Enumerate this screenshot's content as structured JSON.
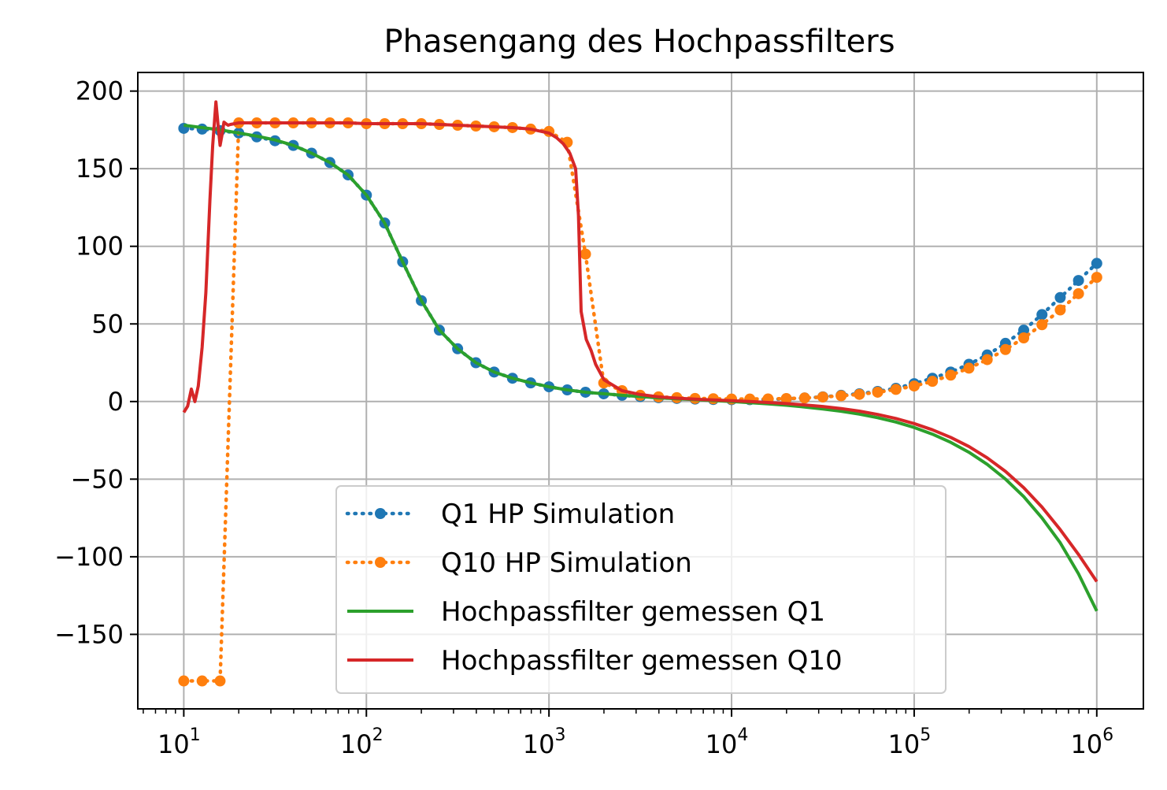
{
  "chart_data": {
    "type": "line",
    "title": "Phasengang des Hochpassfilters",
    "xlabel": "",
    "ylabel": "",
    "xscale": "log",
    "xlim": [
      5.6,
      1800000
    ],
    "ylim": [
      -198,
      212
    ],
    "x_ticks": [
      {
        "value": 10,
        "mantissa": "10",
        "exp": "1"
      },
      {
        "value": 100,
        "mantissa": "10",
        "exp": "2"
      },
      {
        "value": 1000,
        "mantissa": "10",
        "exp": "3"
      },
      {
        "value": 10000,
        "mantissa": "10",
        "exp": "4"
      },
      {
        "value": 100000,
        "mantissa": "10",
        "exp": "5"
      },
      {
        "value": 1000000,
        "mantissa": "10",
        "exp": "6"
      }
    ],
    "y_ticks": [
      {
        "value": 200,
        "label": "200"
      },
      {
        "value": 150,
        "label": "150"
      },
      {
        "value": 100,
        "label": "100"
      },
      {
        "value": 50,
        "label": "50"
      },
      {
        "value": 0,
        "label": "0"
      },
      {
        "value": -50,
        "label": "−50"
      },
      {
        "value": -100,
        "label": "−100"
      },
      {
        "value": -150,
        "label": "−150"
      }
    ],
    "grid": true,
    "legend_position": "lower-center",
    "series": [
      {
        "name": "Q1 HP Simulation",
        "color": "#1f77b4",
        "style": "dotted-markers",
        "x": [
          10,
          12.6,
          15.8,
          20,
          25.1,
          31.6,
          39.8,
          50.1,
          63.1,
          79.4,
          100,
          126,
          158,
          200,
          251,
          316,
          398,
          501,
          631,
          794,
          1000,
          1259,
          1585,
          1995,
          2512,
          3162,
          3981,
          5012,
          6310,
          7943,
          10000,
          12589,
          15849,
          19953,
          25119,
          31623,
          39811,
          50119,
          63096,
          79433,
          100000,
          125893,
          158489,
          199526,
          251189,
          316228,
          398107,
          501187,
          630957,
          794328,
          1000000
        ],
        "y": [
          176,
          175.5,
          174.5,
          173,
          170.5,
          168,
          165,
          160,
          154,
          146,
          133,
          115,
          90,
          65,
          46,
          34,
          25,
          19,
          15,
          12,
          9.5,
          7.5,
          6,
          5,
          4,
          3.2,
          2.5,
          2,
          1.6,
          1.3,
          1.2,
          1.2,
          1.4,
          1.8,
          2.3,
          3,
          4,
          5,
          6.5,
          8.5,
          11.5,
          15,
          19,
          24,
          30,
          37.5,
          46,
          56,
          67,
          78,
          89
        ]
      },
      {
        "name": "Q10 HP Simulation",
        "color": "#ff7f0e",
        "style": "dotted-markers",
        "x": [
          10,
          12.6,
          15.8,
          20,
          25.1,
          31.6,
          39.8,
          50.1,
          63.1,
          79.4,
          100,
          126,
          158,
          200,
          251,
          316,
          398,
          501,
          631,
          794,
          1000,
          1259,
          1585,
          1995,
          2512,
          3162,
          3981,
          5012,
          6310,
          7943,
          10000,
          12589,
          15849,
          19953,
          25119,
          31623,
          39811,
          50119,
          63096,
          79433,
          100000,
          125893,
          158489,
          199526,
          251189,
          316228,
          398107,
          501187,
          630957,
          794328,
          1000000
        ],
        "y": [
          -180,
          -180,
          -180,
          179.5,
          179.5,
          179.5,
          179.5,
          179.5,
          179.5,
          179.5,
          179,
          179,
          179,
          179,
          178.5,
          178,
          177.5,
          177,
          176.5,
          175.5,
          174,
          167,
          95,
          12,
          7,
          4,
          3,
          2.5,
          2,
          1.8,
          1.6,
          1.6,
          1.7,
          1.9,
          2.3,
          2.9,
          3.7,
          4.6,
          6,
          7.8,
          10,
          13,
          17,
          21.5,
          27,
          33.5,
          41,
          49.5,
          59,
          69.5,
          80
        ]
      },
      {
        "name": "Hochpassfilter gemessen Q1",
        "color": "#2ca02c",
        "style": "solid",
        "x": [
          10,
          12.6,
          15.8,
          20,
          25.1,
          31.6,
          39.8,
          50.1,
          63.1,
          79.4,
          100,
          126,
          158,
          200,
          251,
          316,
          398,
          501,
          631,
          794,
          1000,
          1259,
          1585,
          1995,
          2512,
          3162,
          3981,
          5012,
          6310,
          7943,
          10000,
          12589,
          15849,
          19953,
          25119,
          31623,
          39811,
          50119,
          63096,
          79433,
          100000,
          125893,
          158489,
          199526,
          251189,
          316228,
          398107,
          501187,
          630957,
          794328,
          1000000
        ],
        "y": [
          178,
          176.5,
          175,
          173,
          171,
          168.5,
          165,
          160,
          154,
          146,
          133,
          115,
          90,
          65,
          46,
          34,
          25,
          19,
          15,
          12,
          9.5,
          7.5,
          6,
          5,
          4,
          3.2,
          2.4,
          1.8,
          1.2,
          0.6,
          0,
          -0.7,
          -1.5,
          -2.4,
          -3.5,
          -4.8,
          -6.3,
          -8.1,
          -10.4,
          -13.2,
          -16.7,
          -21,
          -26.3,
          -32.7,
          -40.5,
          -50,
          -61.3,
          -75,
          -91,
          -111,
          -135
        ]
      },
      {
        "name": "Hochpassfilter gemessen Q10",
        "color": "#d62728",
        "style": "solid",
        "x": [
          10,
          10.5,
          11,
          11.5,
          12,
          12.6,
          13.2,
          13.9,
          14.4,
          15,
          15.5,
          15.8,
          16.2,
          16.6,
          17,
          17.5,
          18,
          19,
          20,
          25.1,
          31.6,
          39.8,
          50.1,
          63.1,
          79.4,
          100,
          126,
          158,
          200,
          251,
          316,
          398,
          501,
          631,
          794,
          1000,
          1100,
          1200,
          1300,
          1400,
          1450,
          1500,
          1600,
          1700,
          1800,
          2000,
          2512,
          3162,
          3981,
          5012,
          6310,
          7943,
          10000,
          12589,
          15849,
          19953,
          25119,
          31623,
          39811,
          50119,
          63096,
          79433,
          100000,
          125893,
          158489,
          199526,
          251189,
          316228,
          398107,
          501187,
          630957,
          794328,
          1000000
        ],
        "y": [
          -7,
          -3,
          8,
          0,
          10,
          35,
          70,
          130,
          165,
          193,
          175,
          165,
          172,
          180,
          179,
          178,
          178.5,
          179,
          179.5,
          179.5,
          179.5,
          179.5,
          179.5,
          179.5,
          179.5,
          179,
          179,
          179,
          179,
          178.5,
          178,
          177.5,
          177,
          176.5,
          175.5,
          173,
          170,
          166,
          160,
          150,
          120,
          58,
          40,
          33,
          24,
          14,
          7,
          4.5,
          3,
          2.2,
          1.5,
          1,
          0.5,
          0,
          -0.6,
          -1.3,
          -2.2,
          -3.2,
          -4.5,
          -6.2,
          -8.3,
          -10.9,
          -14.2,
          -18.2,
          -23.1,
          -29,
          -36.3,
          -45,
          -55.5,
          -68,
          -82.5,
          -98.5,
          -116
        ]
      }
    ]
  }
}
